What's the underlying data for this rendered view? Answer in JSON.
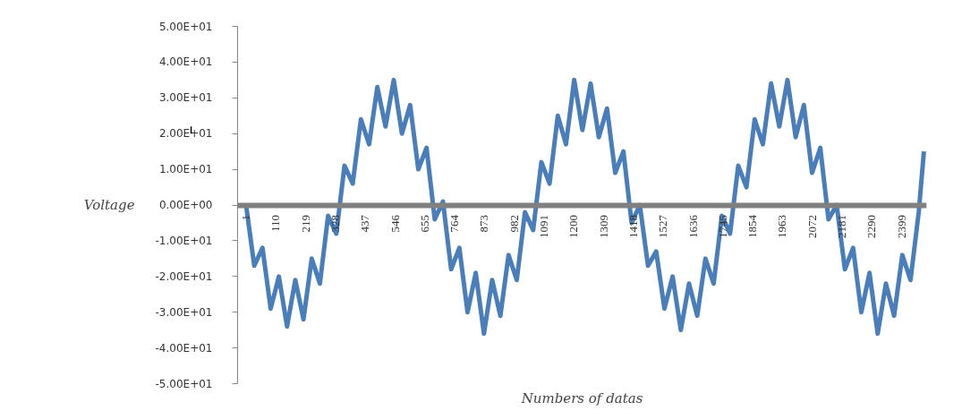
{
  "chart_data": {
    "type": "line",
    "xlabel": "Numbers of datas",
    "ylabel": "Voltage",
    "xlim": [
      -30,
      2490
    ],
    "ylim": [
      -50,
      50
    ],
    "xticks": [
      1,
      110,
      219,
      328,
      437,
      546,
      655,
      764,
      873,
      982,
      1091,
      1200,
      1309,
      1418,
      1527,
      1636,
      1745,
      1854,
      1963,
      2072,
      2181,
      2290,
      2399
    ],
    "yticks": [
      {
        "value": -50,
        "label": "-5.00E+01"
      },
      {
        "value": -40,
        "label": "-4.00E+01"
      },
      {
        "value": -30,
        "label": "-3.00E+01"
      },
      {
        "value": -20,
        "label": "-2.00E+01"
      },
      {
        "value": -10,
        "label": "-1.00E+01"
      },
      {
        "value": 0,
        "label": "0.00E+00"
      },
      {
        "value": 10,
        "label": "1.00E+01"
      },
      {
        "value": 20,
        "label": "2.00E+01"
      },
      {
        "value": 30,
        "label": "3.00E+01"
      },
      {
        "value": 40,
        "label": "4.00E+01"
      },
      {
        "value": 50,
        "label": "5.00E+01"
      }
    ],
    "grid": false,
    "series": [
      {
        "color": "#4a7ebb",
        "x": [
          1,
          31,
          61,
          91,
          121,
          151,
          181,
          211,
          241,
          271,
          301,
          331,
          361,
          391,
          421,
          451,
          481,
          511,
          541,
          571,
          601,
          631,
          661,
          691,
          721,
          751,
          781,
          811,
          841,
          871,
          901,
          931,
          961,
          991,
          1021,
          1051,
          1081,
          1111,
          1141,
          1171,
          1201,
          1231,
          1261,
          1291,
          1321,
          1351,
          1381,
          1411,
          1441,
          1471,
          1501,
          1531,
          1561,
          1591,
          1621,
          1651,
          1681,
          1711,
          1741,
          1771,
          1801,
          1831,
          1861,
          1891,
          1921,
          1951,
          1981,
          2011,
          2041,
          2071,
          2101,
          2131,
          2161,
          2191,
          2221,
          2251,
          2281,
          2311,
          2341,
          2371,
          2401,
          2431,
          2461,
          2480
        ],
        "values": [
          0,
          -17,
          -12,
          -29,
          -20,
          -34,
          -21,
          -32,
          -15,
          -22,
          -3,
          -8,
          11,
          6,
          24,
          17,
          33,
          22,
          35,
          20,
          28,
          10,
          16,
          -4,
          1,
          -18,
          -12,
          -30,
          -19,
          -36,
          -21,
          -31,
          -14,
          -21,
          -2,
          -7,
          12,
          6,
          25,
          17,
          35,
          21,
          34,
          19,
          27,
          9,
          15,
          -5,
          0,
          -17,
          -13,
          -29,
          -20,
          -35,
          -22,
          -31,
          -15,
          -22,
          -3,
          -8,
          11,
          5,
          24,
          17,
          34,
          22,
          35,
          19,
          28,
          9,
          16,
          -4,
          0,
          -18,
          -12,
          -30,
          -19,
          -36,
          -22,
          -31,
          -14,
          -21,
          -2,
          15
        ]
      }
    ]
  }
}
